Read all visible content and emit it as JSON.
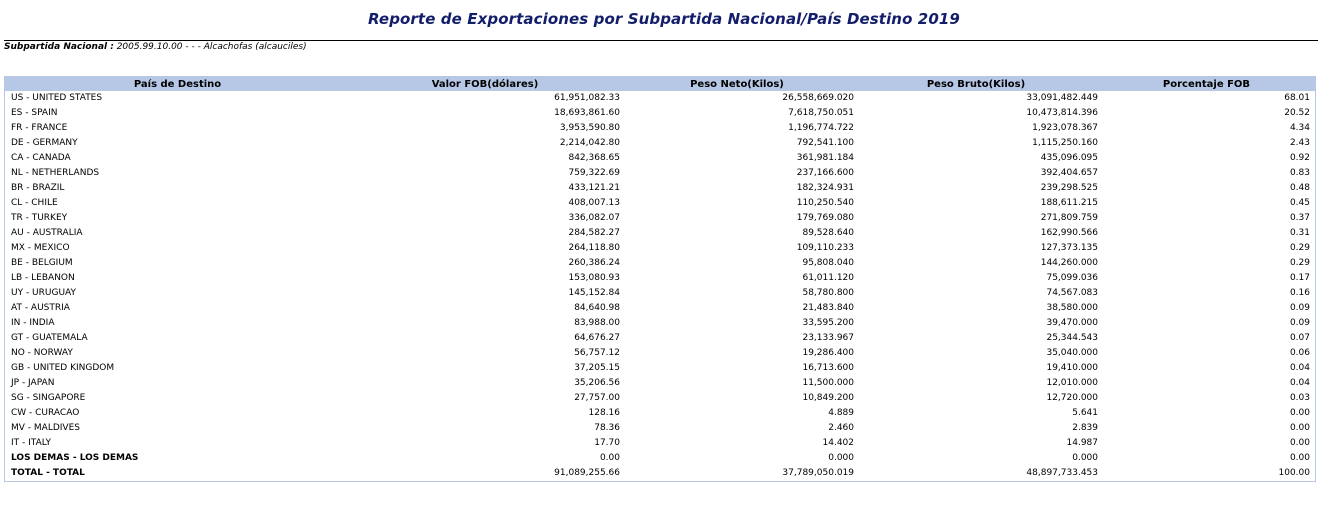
{
  "report": {
    "title": "Reporte de Exportaciones por Subpartida Nacional/País Destino 2019",
    "subpartida_label": "Subpartida Nacional :",
    "subpartida_value": " 2005.99.10.00 - - - Alcachofas (alcauciles)"
  },
  "table": {
    "headers": [
      "País de Destino",
      "Valor FOB(dólares)",
      "Peso Neto(Kilos)",
      "Peso Bruto(Kilos)",
      "Porcentaje FOB"
    ],
    "rows": [
      [
        "US - UNITED STATES",
        "61,951,082.33",
        "26,558,669.020",
        "33,091,482.449",
        "68.01"
      ],
      [
        "ES - SPAIN",
        "18,693,861.60",
        "7,618,750.051",
        "10,473,814.396",
        "20.52"
      ],
      [
        "FR - FRANCE",
        "3,953,590.80",
        "1,196,774.722",
        "1,923,078.367",
        "4.34"
      ],
      [
        "DE - GERMANY",
        "2,214,042.80",
        "792,541.100",
        "1,115,250.160",
        "2.43"
      ],
      [
        "CA - CANADA",
        "842,368.65",
        "361,981.184",
        "435,096.095",
        "0.92"
      ],
      [
        "NL - NETHERLANDS",
        "759,322.69",
        "237,166.600",
        "392,404.657",
        "0.83"
      ],
      [
        "BR - BRAZIL",
        "433,121.21",
        "182,324.931",
        "239,298.525",
        "0.48"
      ],
      [
        "CL - CHILE",
        "408,007.13",
        "110,250.540",
        "188,611.215",
        "0.45"
      ],
      [
        "TR - TURKEY",
        "336,082.07",
        "179,769.080",
        "271,809.759",
        "0.37"
      ],
      [
        "AU - AUSTRALIA",
        "284,582.27",
        "89,528.640",
        "162,990.566",
        "0.31"
      ],
      [
        "MX - MEXICO",
        "264,118.80",
        "109,110.233",
        "127,373.135",
        "0.29"
      ],
      [
        "BE - BELGIUM",
        "260,386.24",
        "95,808.040",
        "144,260.000",
        "0.29"
      ],
      [
        "LB - LEBANON",
        "153,080.93",
        "61,011.120",
        "75,099.036",
        "0.17"
      ],
      [
        "UY - URUGUAY",
        "145,152.84",
        "58,780.800",
        "74,567.083",
        "0.16"
      ],
      [
        "AT - AUSTRIA",
        "84,640.98",
        "21,483.840",
        "38,580.000",
        "0.09"
      ],
      [
        "IN - INDIA",
        "83,988.00",
        "33,595.200",
        "39,470.000",
        "0.09"
      ],
      [
        "GT - GUATEMALA",
        "64,676.27",
        "23,133.967",
        "25,344.543",
        "0.07"
      ],
      [
        "NO - NORWAY",
        "56,757.12",
        "19,286.400",
        "35,040.000",
        "0.06"
      ],
      [
        "GB - UNITED KINGDOM",
        "37,205.15",
        "16,713.600",
        "19,410.000",
        "0.04"
      ],
      [
        "JP - JAPAN",
        "35,206.56",
        "11,500.000",
        "12,010.000",
        "0.04"
      ],
      [
        "SG - SINGAPORE",
        "27,757.00",
        "10,849.200",
        "12,720.000",
        "0.03"
      ],
      [
        "CW - CURACAO",
        "128.16",
        "4.889",
        "5.641",
        "0.00"
      ],
      [
        "MV - MALDIVES",
        "78.36",
        "2.460",
        "2.839",
        "0.00"
      ],
      [
        "IT - ITALY",
        "17.70",
        "14.402",
        "14.987",
        "0.00"
      ],
      [
        "LOS DEMAS - LOS DEMAS",
        "0.00",
        "0.000",
        "0.000",
        "0.00"
      ],
      [
        "TOTAL - TOTAL",
        "91,089,255.66",
        "37,789,050.019",
        "48,897,733.453",
        "100.00"
      ]
    ],
    "bold_rows": [
      24,
      25
    ]
  },
  "colors": {
    "title": "#131e6b",
    "header_bg": "#b7c8e6"
  }
}
